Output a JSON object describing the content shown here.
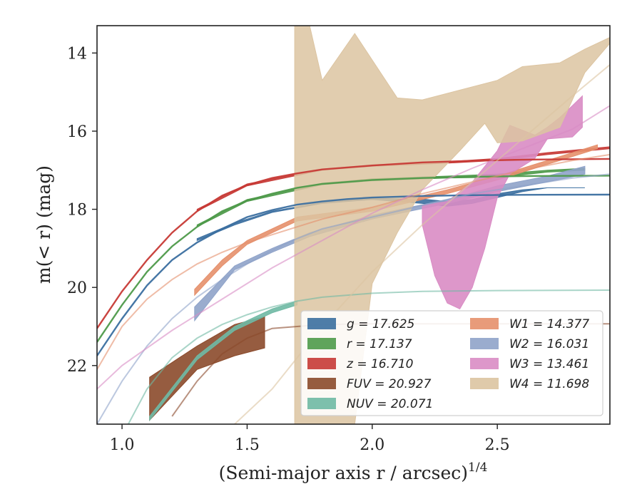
{
  "chart_data": {
    "type": "line",
    "xlabel": "(Semi-major axis r / arcsec)",
    "xlabel_exponent": "1/4",
    "ylabel": "m(< r) (mag)",
    "xlim": [
      0.9,
      2.95
    ],
    "ylim": [
      23.5,
      13.3
    ],
    "y_inverted": true,
    "grid": false,
    "legend_position": "lower-right",
    "xticks": [
      {
        "value": 1.0,
        "label": "1.0"
      },
      {
        "value": 1.5,
        "label": "1.5"
      },
      {
        "value": 2.0,
        "label": "2.0"
      },
      {
        "value": 2.5,
        "label": "2.5"
      }
    ],
    "yticks": [
      {
        "value": 14,
        "label": "14"
      },
      {
        "value": 16,
        "label": "16"
      },
      {
        "value": 18,
        "label": "18"
      },
      {
        "value": 20,
        "label": "20"
      },
      {
        "value": 22,
        "label": "22"
      }
    ],
    "series": [
      {
        "name": "g = 17.625",
        "color": "#3b6fa0",
        "model": [
          [
            0.9,
            21.75
          ],
          [
            1.0,
            20.8
          ],
          [
            1.1,
            19.95
          ],
          [
            1.2,
            19.3
          ],
          [
            1.3,
            18.85
          ],
          [
            1.4,
            18.5
          ],
          [
            1.5,
            18.2
          ],
          [
            1.6,
            18.02
          ],
          [
            1.7,
            17.88
          ],
          [
            1.8,
            17.8
          ],
          [
            1.9,
            17.74
          ],
          [
            2.0,
            17.7
          ],
          [
            2.2,
            17.66
          ],
          [
            2.4,
            17.64
          ],
          [
            2.6,
            17.63
          ],
          [
            2.95,
            17.625
          ]
        ],
        "data_upper": [
          [
            1.3,
            18.75
          ],
          [
            1.45,
            18.35
          ],
          [
            1.6,
            18.05
          ],
          [
            1.8,
            17.82
          ],
          [
            2.0,
            17.72
          ],
          [
            2.2,
            17.74
          ],
          [
            2.3,
            17.8
          ],
          [
            2.4,
            17.75
          ],
          [
            2.5,
            17.6
          ],
          [
            2.6,
            17.5
          ],
          [
            2.7,
            17.45
          ],
          [
            2.85,
            17.45
          ]
        ],
        "data_lower": [
          [
            2.85,
            17.45
          ],
          [
            2.7,
            17.45
          ],
          [
            2.6,
            17.55
          ],
          [
            2.5,
            17.7
          ],
          [
            2.4,
            17.85
          ],
          [
            2.3,
            17.92
          ],
          [
            2.2,
            17.85
          ],
          [
            2.0,
            17.75
          ],
          [
            1.8,
            17.85
          ],
          [
            1.6,
            18.08
          ],
          [
            1.45,
            18.4
          ],
          [
            1.3,
            18.8
          ]
        ]
      },
      {
        "name": "r = 17.137",
        "color": "#4e9a4a",
        "model": [
          [
            0.9,
            21.4
          ],
          [
            1.0,
            20.45
          ],
          [
            1.1,
            19.6
          ],
          [
            1.2,
            18.95
          ],
          [
            1.3,
            18.45
          ],
          [
            1.4,
            18.05
          ],
          [
            1.5,
            17.78
          ],
          [
            1.6,
            17.6
          ],
          [
            1.7,
            17.45
          ],
          [
            1.8,
            17.35
          ],
          [
            2.0,
            17.25
          ],
          [
            2.2,
            17.2
          ],
          [
            2.4,
            17.17
          ],
          [
            2.6,
            17.15
          ],
          [
            2.95,
            17.14
          ]
        ],
        "data_upper": [
          [
            1.3,
            18.4
          ],
          [
            1.5,
            17.75
          ],
          [
            1.8,
            17.33
          ],
          [
            2.0,
            17.22
          ],
          [
            2.3,
            17.15
          ],
          [
            2.5,
            17.1
          ],
          [
            2.7,
            17.0
          ],
          [
            2.85,
            16.95
          ]
        ],
        "data_lower": [
          [
            2.85,
            17.0
          ],
          [
            2.7,
            17.05
          ],
          [
            2.5,
            17.18
          ],
          [
            2.3,
            17.2
          ],
          [
            2.0,
            17.27
          ],
          [
            1.8,
            17.37
          ],
          [
            1.5,
            17.8
          ],
          [
            1.3,
            18.45
          ]
        ]
      },
      {
        "name": "z = 16.710",
        "color": "#c73a36",
        "model": [
          [
            0.9,
            21.05
          ],
          [
            1.0,
            20.1
          ],
          [
            1.1,
            19.3
          ],
          [
            1.2,
            18.6
          ],
          [
            1.3,
            18.05
          ],
          [
            1.4,
            17.65
          ],
          [
            1.5,
            17.38
          ],
          [
            1.6,
            17.2
          ],
          [
            1.7,
            17.08
          ],
          [
            1.8,
            16.98
          ],
          [
            2.0,
            16.88
          ],
          [
            2.2,
            16.8
          ],
          [
            2.4,
            16.76
          ],
          [
            2.6,
            16.73
          ],
          [
            2.95,
            16.71
          ]
        ],
        "data_upper": [
          [
            1.3,
            18.0
          ],
          [
            1.5,
            17.35
          ],
          [
            1.8,
            16.97
          ],
          [
            2.0,
            16.86
          ],
          [
            2.3,
            16.78
          ],
          [
            2.5,
            16.7
          ],
          [
            2.7,
            16.55
          ],
          [
            2.95,
            16.4
          ]
        ],
        "data_lower": [
          [
            2.95,
            16.45
          ],
          [
            2.7,
            16.6
          ],
          [
            2.5,
            16.75
          ],
          [
            2.3,
            16.82
          ],
          [
            2.0,
            16.9
          ],
          [
            1.8,
            17.0
          ],
          [
            1.5,
            17.4
          ],
          [
            1.3,
            18.05
          ]
        ]
      },
      {
        "name": "FUV = 20.927",
        "color": "#8b4a2b",
        "model": [
          [
            1.2,
            23.3
          ],
          [
            1.3,
            22.4
          ],
          [
            1.4,
            21.7
          ],
          [
            1.5,
            21.3
          ],
          [
            1.6,
            21.05
          ],
          [
            1.8,
            20.95
          ],
          [
            2.0,
            20.93
          ],
          [
            2.95,
            20.93
          ]
        ],
        "data_upper": [
          [
            1.11,
            22.3
          ],
          [
            1.3,
            21.5
          ],
          [
            1.45,
            20.95
          ],
          [
            1.57,
            20.75
          ]
        ],
        "data_lower": [
          [
            1.57,
            21.55
          ],
          [
            1.45,
            21.75
          ],
          [
            1.3,
            22.1
          ],
          [
            1.11,
            23.4
          ]
        ]
      },
      {
        "name": "NUV = 20.071",
        "color": "#6fb9a4",
        "model": [
          [
            0.9,
            25.5
          ],
          [
            1.0,
            23.8
          ],
          [
            1.1,
            22.6
          ],
          [
            1.2,
            21.8
          ],
          [
            1.3,
            21.3
          ],
          [
            1.4,
            20.95
          ],
          [
            1.5,
            20.7
          ],
          [
            1.6,
            20.5
          ],
          [
            1.7,
            20.35
          ],
          [
            1.8,
            20.25
          ],
          [
            2.0,
            20.15
          ],
          [
            2.2,
            20.1
          ],
          [
            2.5,
            20.08
          ],
          [
            2.95,
            20.07
          ]
        ],
        "data_upper": [
          [
            1.11,
            23.3
          ],
          [
            1.3,
            21.75
          ],
          [
            1.45,
            21.0
          ],
          [
            1.6,
            20.55
          ],
          [
            1.7,
            20.35
          ]
        ],
        "data_lower": [
          [
            1.7,
            20.45
          ],
          [
            1.6,
            20.65
          ],
          [
            1.45,
            21.1
          ],
          [
            1.3,
            21.85
          ],
          [
            1.11,
            23.4
          ]
        ]
      },
      {
        "name": "W1 = 14.377",
        "color": "#e5906c",
        "model": [
          [
            0.9,
            22.1
          ],
          [
            1.0,
            21.0
          ],
          [
            1.1,
            20.3
          ],
          [
            1.2,
            19.8
          ],
          [
            1.3,
            19.4
          ],
          [
            1.4,
            19.1
          ],
          [
            1.5,
            18.85
          ],
          [
            1.6,
            18.65
          ],
          [
            1.7,
            18.45
          ],
          [
            1.8,
            18.25
          ],
          [
            2.0,
            17.95
          ],
          [
            2.2,
            17.6
          ],
          [
            2.4,
            17.3
          ],
          [
            2.6,
            17.0
          ],
          [
            2.8,
            16.75
          ],
          [
            2.95,
            16.6
          ]
        ],
        "data_upper": [
          [
            1.29,
            20.05
          ],
          [
            1.4,
            19.3
          ],
          [
            1.5,
            18.8
          ],
          [
            1.6,
            18.5
          ],
          [
            1.7,
            18.2
          ],
          [
            2.0,
            17.95
          ],
          [
            2.3,
            17.5
          ],
          [
            2.5,
            17.15
          ],
          [
            2.7,
            16.75
          ],
          [
            2.9,
            16.35
          ]
        ],
        "data_lower": [
          [
            2.9,
            16.45
          ],
          [
            2.7,
            16.85
          ],
          [
            2.5,
            17.25
          ],
          [
            2.3,
            17.6
          ],
          [
            2.0,
            18.05
          ],
          [
            1.7,
            18.3
          ],
          [
            1.6,
            18.6
          ],
          [
            1.5,
            18.9
          ],
          [
            1.4,
            19.45
          ],
          [
            1.29,
            20.2
          ]
        ]
      },
      {
        "name": "W2 = 16.031",
        "color": "#8fa3c9",
        "model": [
          [
            0.9,
            23.5
          ],
          [
            1.0,
            22.4
          ],
          [
            1.1,
            21.5
          ],
          [
            1.2,
            20.8
          ],
          [
            1.3,
            20.25
          ],
          [
            1.4,
            19.8
          ],
          [
            1.5,
            19.4
          ],
          [
            1.6,
            19.05
          ],
          [
            1.7,
            18.75
          ],
          [
            1.8,
            18.5
          ],
          [
            2.0,
            18.2
          ],
          [
            2.2,
            17.9
          ],
          [
            2.4,
            17.6
          ],
          [
            2.6,
            17.4
          ],
          [
            2.8,
            17.2
          ],
          [
            2.95,
            17.1
          ]
        ],
        "data_upper": [
          [
            1.29,
            20.5
          ],
          [
            1.45,
            19.45
          ],
          [
            1.6,
            19.0
          ],
          [
            1.75,
            18.6
          ],
          [
            2.0,
            18.15
          ],
          [
            2.3,
            17.75
          ],
          [
            2.5,
            17.4
          ],
          [
            2.7,
            17.15
          ],
          [
            2.85,
            16.9
          ]
        ],
        "data_lower": [
          [
            2.85,
            17.1
          ],
          [
            2.7,
            17.3
          ],
          [
            2.5,
            17.55
          ],
          [
            2.3,
            17.85
          ],
          [
            2.0,
            18.25
          ],
          [
            1.75,
            18.7
          ],
          [
            1.6,
            19.1
          ],
          [
            1.45,
            19.55
          ],
          [
            1.29,
            20.85
          ]
        ]
      },
      {
        "name": "W3 = 13.461",
        "color": "#d98cc4",
        "model": [
          [
            0.9,
            22.6
          ],
          [
            1.0,
            22.0
          ],
          [
            1.2,
            21.1
          ],
          [
            1.4,
            20.3
          ],
          [
            1.6,
            19.5
          ],
          [
            1.8,
            18.8
          ],
          [
            2.0,
            18.1
          ],
          [
            2.2,
            17.5
          ],
          [
            2.4,
            16.95
          ],
          [
            2.6,
            16.45
          ],
          [
            2.8,
            15.95
          ],
          [
            2.95,
            15.35
          ]
        ],
        "data_upper": [
          [
            2.2,
            17.9
          ],
          [
            2.3,
            17.8
          ],
          [
            2.4,
            17.3
          ],
          [
            2.5,
            16.5
          ],
          [
            2.55,
            15.85
          ],
          [
            2.65,
            16.1
          ],
          [
            2.7,
            15.9
          ],
          [
            2.75,
            15.65
          ],
          [
            2.8,
            15.35
          ],
          [
            2.84,
            15.1
          ]
        ],
        "data_lower": [
          [
            2.84,
            15.9
          ],
          [
            2.8,
            16.15
          ],
          [
            2.7,
            16.2
          ],
          [
            2.65,
            16.7
          ],
          [
            2.55,
            17.1
          ],
          [
            2.5,
            17.7
          ],
          [
            2.45,
            19.0
          ],
          [
            2.4,
            20.0
          ],
          [
            2.35,
            20.55
          ],
          [
            2.3,
            20.4
          ],
          [
            2.25,
            19.7
          ],
          [
            2.2,
            18.4
          ]
        ]
      },
      {
        "name": "W4 = 11.698",
        "color": "#dcc4a1",
        "model": [
          [
            1.45,
            23.5
          ],
          [
            1.6,
            22.6
          ],
          [
            1.8,
            21.0
          ],
          [
            2.0,
            19.6
          ],
          [
            2.2,
            18.4
          ],
          [
            2.4,
            17.3
          ],
          [
            2.6,
            16.2
          ],
          [
            2.8,
            15.1
          ],
          [
            2.95,
            14.3
          ]
        ],
        "data_upper": [
          [
            1.69,
            13.3
          ],
          [
            1.75,
            13.3
          ],
          [
            1.8,
            14.7
          ],
          [
            1.93,
            13.5
          ],
          [
            2.1,
            15.15
          ],
          [
            2.2,
            15.2
          ],
          [
            2.5,
            14.7
          ],
          [
            2.6,
            14.35
          ],
          [
            2.75,
            14.25
          ],
          [
            2.85,
            13.9
          ],
          [
            2.95,
            13.6
          ]
        ],
        "data_lower": [
          [
            2.95,
            13.75
          ],
          [
            2.85,
            14.5
          ],
          [
            2.75,
            15.9
          ],
          [
            2.6,
            16.25
          ],
          [
            2.5,
            16.3
          ],
          [
            2.45,
            15.8
          ],
          [
            2.35,
            16.5
          ],
          [
            2.2,
            17.5
          ],
          [
            2.1,
            18.6
          ],
          [
            2.0,
            19.9
          ],
          [
            1.93,
            23.5
          ],
          [
            1.69,
            23.5
          ]
        ]
      }
    ]
  }
}
